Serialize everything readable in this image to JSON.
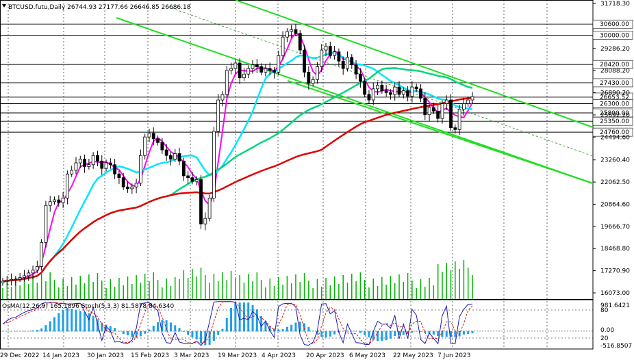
{
  "header": {
    "symbol_icon": "down-triangle-icon",
    "text": "BTCUSD.futu,Daily  26744.93 27177.66 26646.85 26686.18"
  },
  "colors": {
    "bull_candle": "#000000",
    "bear_candle": "#000000",
    "ma_fast": "#ff00ff",
    "ma_mid": "#00e5ff",
    "ma_slow_green": "#00d67a",
    "ma_slow_red": "#e00000",
    "channel": "#22dd22",
    "level_box": "#ffffff",
    "osma": "#1e9fe6",
    "stoch_main": "#1b1bb4",
    "stoch_signal": "#e01010",
    "grid": "#000000"
  },
  "chart_data": {
    "type": "candlestick",
    "title": "BTCUSD.futu,Daily",
    "ohlc_last": {
      "open": 26744.93,
      "high": 27177.66,
      "low": 26646.85,
      "close": 26686.18
    },
    "ylim": [
      16073.0,
      31718.3
    ],
    "y_ticks": [
      "31718.30",
      "29286.20",
      "28088.20",
      "26890.20",
      "25692.20",
      "24494.60",
      "23260.40",
      "22062.50",
      "20864.60",
      "19666.70",
      "18468.80",
      "17270.90",
      "16073.00"
    ],
    "x_ticks": [
      "29 Dec 2022",
      "14 Jan 2023",
      "30 Jan 2023",
      "15 Feb 2023",
      "3 Mar 2023",
      "19 Mar 2023",
      "4 Apr 2023",
      "20 Apr 2023",
      "6 May 2023",
      "22 May 2023",
      "7 Jun 2023"
    ],
    "levels": [
      "30600.00",
      "30000.00",
      "28420.00",
      "27430.00",
      "26653.52",
      "26300.00",
      "25800.00",
      "25350.00",
      "24760.00"
    ],
    "close_path": [
      16700,
      16750,
      16800,
      16820,
      16900,
      17000,
      17150,
      17300,
      17500,
      18800,
      20800,
      21000,
      21100,
      20950,
      21200,
      22500,
      22700,
      23100,
      23300,
      22900,
      23000,
      23500,
      23200,
      22800,
      23100,
      23000,
      22500,
      22300,
      21800,
      21700,
      21800,
      22000,
      23500,
      24500,
      24700,
      24400,
      24200,
      23800,
      23500,
      23300,
      23600,
      23200,
      22400,
      22300,
      22100,
      22200,
      19800,
      20100,
      21200,
      24800,
      26500,
      26800,
      28100,
      28200,
      28500,
      27700,
      27900,
      28200,
      28400,
      28300,
      28000,
      28200,
      28100,
      28000,
      28900,
      29900,
      30200,
      30300,
      30100,
      29200,
      28000,
      27400,
      27600,
      28300,
      29200,
      29400,
      28900,
      29100,
      28600,
      28200,
      28800,
      28400,
      27900,
      27500,
      26800,
      26500,
      27100,
      27300,
      27000,
      26900,
      26800,
      27200,
      26800,
      27000,
      26700,
      27200,
      27100,
      26600,
      25700,
      26100,
      25900,
      25500,
      26300,
      26500,
      25000,
      24900,
      26000,
      26300,
      26500,
      26686.18
    ],
    "indicator": {
      "label": "OsMA(12,26,9) 165.1896  Stoch(5,3,3) 81.5878 84.6340",
      "ylim": [
        -516.8507,
        981.6421
      ],
      "ticks": [
        "981.6421",
        "80",
        "0.00",
        "20",
        "-516.8507"
      ]
    }
  }
}
